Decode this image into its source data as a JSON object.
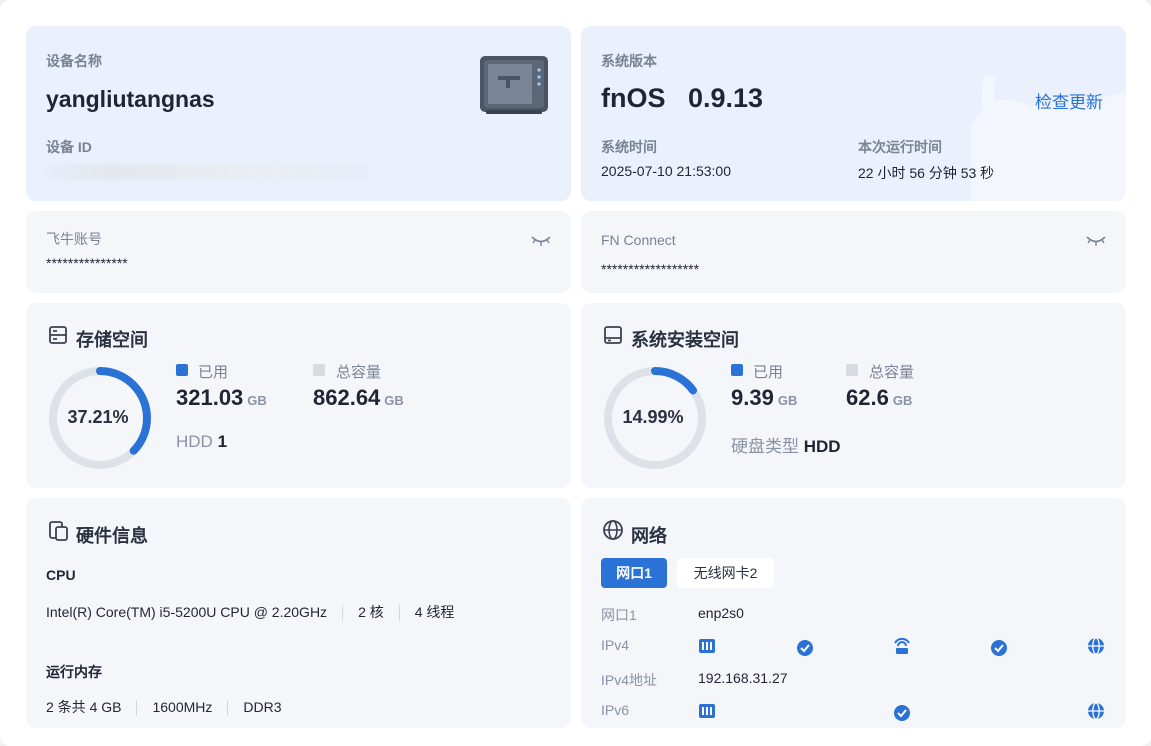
{
  "device": {
    "name_label": "设备名称",
    "name": "yangliutangnas",
    "id_label": "设备 ID"
  },
  "system": {
    "version_label": "系统版本",
    "version": "fnOS   0.9.13",
    "check_update": "检查更新",
    "time_label": "系统时间",
    "time": "2025-07-10 21:53:00",
    "uptime_label": "本次运行时间",
    "uptime": "22 小时 56 分钟 53 秒"
  },
  "account": {
    "label": "飞牛账号",
    "value": "***************"
  },
  "connect": {
    "label": "FN Connect",
    "value": "******************"
  },
  "storage": {
    "title": "存储空间",
    "percent": "37.21%",
    "percent_value": 37.21,
    "used_label": "已用",
    "used": "321.03",
    "used_unit": "GB",
    "total_label": "总容量",
    "total": "862.64",
    "total_unit": "GB",
    "disk_type": "HDD",
    "disk_count": "1"
  },
  "sysdisk": {
    "title": "系统安装空间",
    "percent": "14.99%",
    "percent_value": 14.99,
    "used_label": "已用",
    "used": "9.39",
    "used_unit": "GB",
    "total_label": "总容量",
    "total": "62.6",
    "total_unit": "GB",
    "disk_type_label": "硬盘类型",
    "disk_type": "HDD"
  },
  "hardware": {
    "title": "硬件信息",
    "cpu_label": "CPU",
    "cpu_model": "Intel(R) Core(TM) i5-5200U CPU @ 2.20GHz",
    "cpu_cores": "2 核",
    "cpu_threads": "4 线程",
    "mem_label": "运行内存",
    "mem_size": "2 条共 4 GB",
    "mem_freq": "1600MHz",
    "mem_type": "DDR3"
  },
  "network": {
    "title": "网络",
    "tabs": [
      "网口1",
      "无线网卡2"
    ],
    "port_label": "网口1",
    "port_value": "enp2s0",
    "ipv4_label": "IPv4",
    "ipv4_addr_label": "IPv4地址",
    "ipv4_addr": "192.168.31.27",
    "ipv6_label": "IPv6"
  },
  "colors": {
    "accent": "#2a72d6",
    "track": "#dde1e8"
  }
}
